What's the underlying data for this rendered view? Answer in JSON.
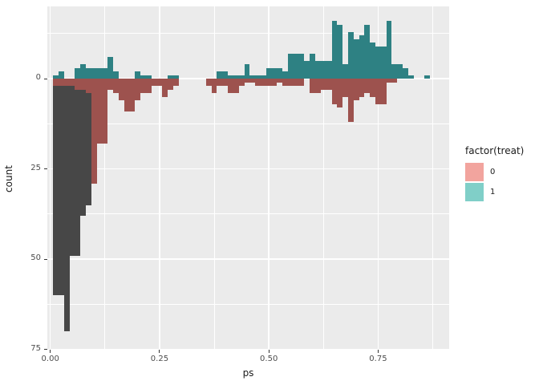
{
  "chart_data": {
    "type": "bar",
    "subtype": "mirrored-histogram",
    "title": "",
    "xlabel": "ps",
    "ylabel": "count",
    "x_ticks": [
      {
        "value": 0.0,
        "label": "0.00"
      },
      {
        "value": 0.25,
        "label": "0.25"
      },
      {
        "value": 0.5,
        "label": "0.50"
      },
      {
        "value": 0.75,
        "label": "0.75"
      }
    ],
    "x_minor": [
      0.125,
      0.375,
      0.625,
      0.875
    ],
    "y_ticks": [
      {
        "value": 0,
        "label": "0"
      },
      {
        "value": 25,
        "label": "25"
      },
      {
        "value": 50,
        "label": "50"
      },
      {
        "value": 75,
        "label": "75"
      }
    ],
    "y_minor": [
      -12.5,
      12.5,
      37.5,
      62.5
    ],
    "y_axis_note": "counts below zero line are drawn downward (control group), counts above are treated group",
    "xlim": [
      0.0,
      0.9125
    ],
    "ylim_counts": [
      -75,
      18
    ],
    "bin_start": 0.00625,
    "bin_width": 0.0125,
    "series": [
      {
        "name": "treated_up_teal",
        "legend_label": "1",
        "direction": "up",
        "values": [
          1,
          2,
          0,
          0,
          3,
          4,
          3,
          3,
          3,
          3,
          6,
          2,
          0,
          0,
          0,
          2,
          1,
          1,
          0,
          0,
          0,
          1,
          1,
          0,
          0,
          0,
          0,
          0,
          0,
          0,
          2,
          2,
          1,
          1,
          1,
          4,
          1,
          1,
          1,
          3,
          3,
          3,
          2,
          7,
          7,
          7,
          5,
          7,
          5,
          5,
          5,
          16,
          15,
          4,
          13,
          11,
          12,
          15,
          10,
          9,
          9,
          16,
          4,
          4,
          3,
          1,
          0,
          0,
          1,
          0,
          0,
          0
        ]
      },
      {
        "name": "control_matched_down_red",
        "legend_label": "0",
        "direction": "down",
        "values": [
          2,
          2,
          2,
          2,
          3,
          3,
          4,
          29,
          18,
          18,
          3,
          4,
          6,
          9,
          9,
          6,
          4,
          4,
          2,
          2,
          5,
          3,
          2,
          0,
          0,
          0,
          0,
          0,
          2,
          4,
          2,
          2,
          4,
          4,
          2,
          1,
          1,
          2,
          2,
          2,
          2,
          1,
          2,
          2,
          2,
          2,
          0,
          4,
          4,
          3,
          3,
          7,
          8,
          5,
          12,
          6,
          5,
          4,
          5,
          7,
          7,
          1,
          1,
          0,
          0,
          0,
          0,
          0,
          0,
          0,
          0,
          0
        ]
      },
      {
        "name": "control_total_down_gray",
        "direction": "down",
        "values": [
          60,
          60,
          70,
          49,
          49,
          38,
          35,
          0,
          0,
          0,
          0,
          0,
          0,
          0,
          0,
          0,
          0,
          0,
          0,
          0,
          0,
          0,
          0,
          0,
          0,
          0,
          0,
          0,
          0,
          0,
          0,
          0,
          0,
          0,
          0,
          0,
          0,
          0,
          0,
          0,
          0,
          0,
          0,
          0,
          0,
          0,
          0,
          0,
          0,
          0,
          0,
          0,
          0,
          0,
          0,
          0,
          0,
          0,
          0,
          0,
          0,
          0,
          0,
          0,
          0,
          0,
          0,
          0,
          0,
          0,
          0,
          0
        ]
      }
    ],
    "legend_position": "right",
    "grid": true
  },
  "axes": {
    "x_title": "ps",
    "y_title": "count"
  },
  "legend": {
    "title": "factor(treat)",
    "items": [
      {
        "label": "0",
        "color": "#F2A49E"
      },
      {
        "label": "1",
        "color": "#80CFC8"
      }
    ]
  },
  "colors": {
    "treated_bar": "#2E8183",
    "control_bar": "#9D524E",
    "unmatched_bar": "#474747",
    "panel_bg": "#EBEBEB",
    "grid": "#FFFFFF",
    "tick_text": "#4D4D4D",
    "title_text": "#1a1a1a"
  }
}
